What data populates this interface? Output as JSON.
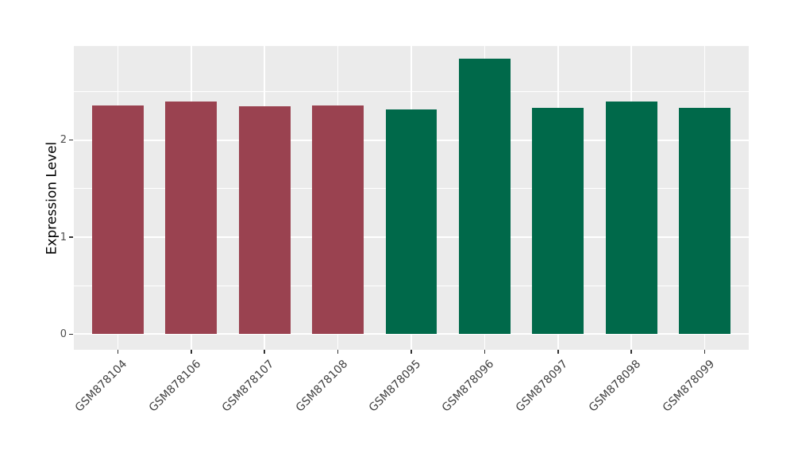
{
  "chart_data": {
    "type": "bar",
    "title": "",
    "xlabel": "",
    "ylabel": "Expression Level",
    "categories": [
      "GSM878104",
      "GSM878106",
      "GSM878107",
      "GSM878108",
      "GSM878095",
      "GSM878096",
      "GSM878097",
      "GSM878098",
      "GSM878099"
    ],
    "values": [
      2.36,
      2.4,
      2.35,
      2.36,
      2.32,
      2.84,
      2.33,
      2.4,
      2.33
    ],
    "bar_colors": [
      "#9A4250",
      "#9A4250",
      "#9A4250",
      "#9A4250",
      "#00694A",
      "#00694A",
      "#00694A",
      "#00694A",
      "#00694A"
    ],
    "yticks": [
      0,
      1,
      2
    ],
    "ytick_labels": [
      "0",
      "1",
      "2"
    ],
    "minor_yticks": [
      0.5,
      1.5,
      2.5
    ],
    "ylim": [
      -0.16,
      2.97
    ],
    "bar_width_fraction": 0.7,
    "x_label_rotation_deg": 45,
    "grid": "white major and minor horizontal lines, white vertical line at each category center",
    "legend_position": "none",
    "colors": {
      "panel_background": "#EBEBEB",
      "gridline": "#FFFFFF",
      "tick_mark": "#333333",
      "tick_text": "#4D4D4D",
      "axis_title_text": "#000000",
      "group_red": "#9A4250",
      "group_green": "#00694A"
    }
  }
}
